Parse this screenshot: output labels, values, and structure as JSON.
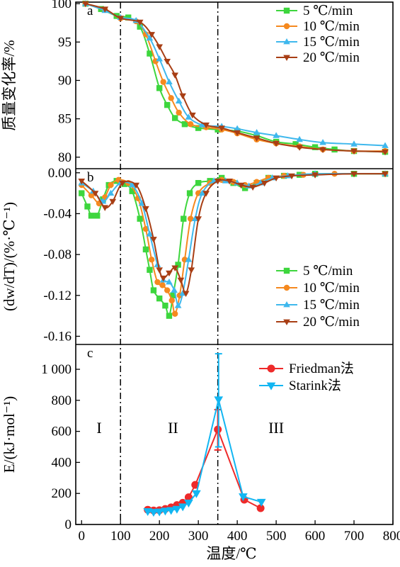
{
  "figure": {
    "x_axis": {
      "label": "温度/℃",
      "ticks": [
        0,
        100,
        200,
        300,
        400,
        500,
        600,
        700,
        800
      ],
      "range": [
        -15,
        800
      ]
    },
    "divider_lines_x": [
      100,
      350
    ]
  },
  "chart_data": [
    {
      "id": "a",
      "type": "line",
      "panel_label": "a",
      "ylabel": "质量变化率/%",
      "ylim": [
        78.5,
        100.2
      ],
      "yticks": [
        80,
        85,
        90,
        95,
        100
      ],
      "ytick_labels": [
        "80",
        "85",
        "90",
        "95",
        "100"
      ],
      "grid": false,
      "legend": "top-right",
      "series": [
        {
          "name": "5 ℃/min",
          "color": "#3dd63d",
          "marker": "square",
          "points": [
            [
              10,
              100
            ],
            [
              50,
              99.3
            ],
            [
              90,
              98.4
            ],
            [
              120,
              98.2
            ],
            [
              150,
              97
            ],
            [
              175,
              93.5
            ],
            [
              200,
              89
            ],
            [
              220,
              86.8
            ],
            [
              240,
              85.1
            ],
            [
              265,
              84.3
            ],
            [
              300,
              83.8
            ],
            [
              350,
              83.6
            ],
            [
              400,
              83.4
            ],
            [
              450,
              82.8
            ],
            [
              500,
              82
            ],
            [
              550,
              81.7
            ],
            [
              600,
              81.3
            ],
            [
              650,
              81
            ],
            [
              700,
              80.8
            ],
            [
              780,
              80.7
            ]
          ]
        },
        {
          "name": "10 ℃/min",
          "color": "#f5891f",
          "marker": "circle",
          "points": [
            [
              10,
              100
            ],
            [
              60,
              99.2
            ],
            [
              100,
              98.1
            ],
            [
              140,
              97.7
            ],
            [
              165,
              96
            ],
            [
              190,
              92.5
            ],
            [
              210,
              89.8
            ],
            [
              230,
              87.7
            ],
            [
              250,
              85.8
            ],
            [
              280,
              84.3
            ],
            [
              320,
              83.9
            ],
            [
              360,
              83.6
            ],
            [
              400,
              83.1
            ],
            [
              450,
              82.3
            ],
            [
              500,
              81.8
            ],
            [
              560,
              81.4
            ],
            [
              620,
              81
            ],
            [
              700,
              80.8
            ],
            [
              780,
              80.8
            ]
          ]
        },
        {
          "name": "15 ℃/min",
          "color": "#3fb8ed",
          "marker": "triangle-up",
          "points": [
            [
              10,
              100
            ],
            [
              60,
              99.1
            ],
            [
              100,
              98.2
            ],
            [
              140,
              97.8
            ],
            [
              175,
              95.5
            ],
            [
              200,
              92.8
            ],
            [
              225,
              89.8
            ],
            [
              250,
              87.3
            ],
            [
              275,
              85.2
            ],
            [
              310,
              84.2
            ],
            [
              360,
              84
            ],
            [
              400,
              83.7
            ],
            [
              450,
              83.2
            ],
            [
              500,
              82.8
            ],
            [
              560,
              82.3
            ],
            [
              620,
              81.9
            ],
            [
              700,
              81.7
            ],
            [
              780,
              81.5
            ]
          ]
        },
        {
          "name": "20 ℃/min",
          "color": "#a83e14",
          "marker": "triangle-down",
          "points": [
            [
              10,
              100
            ],
            [
              60,
              99.3
            ],
            [
              100,
              98.1
            ],
            [
              150,
              97.6
            ],
            [
              180,
              96
            ],
            [
              200,
              94.4
            ],
            [
              220,
              92.5
            ],
            [
              240,
              90.7
            ],
            [
              260,
              88
            ],
            [
              285,
              85.5
            ],
            [
              320,
              84.2
            ],
            [
              360,
              83.8
            ],
            [
              400,
              83.2
            ],
            [
              450,
              82.5
            ],
            [
              500,
              81.8
            ],
            [
              560,
              81.3
            ],
            [
              620,
              81
            ],
            [
              700,
              80.8
            ],
            [
              780,
              80.7
            ]
          ]
        }
      ]
    },
    {
      "id": "b",
      "type": "line",
      "panel_label": "b",
      "ylabel": "(dw/dT)/(%·℃⁻¹)",
      "ylim": [
        -0.168,
        0.004
      ],
      "yticks": [
        0,
        -0.04,
        -0.08,
        -0.12,
        -0.16
      ],
      "ytick_labels": [
        "0.00",
        "-0.04",
        "-0.08",
        "-0.12",
        "-0.16"
      ],
      "grid": false,
      "legend": "bottom-right",
      "series": [
        {
          "name": "5 ℃/min",
          "color": "#3dd63d",
          "marker": "square",
          "points": [
            [
              0,
              -0.02
            ],
            [
              15,
              -0.033
            ],
            [
              25,
              -0.042
            ],
            [
              40,
              -0.042
            ],
            [
              55,
              -0.026
            ],
            [
              70,
              -0.012
            ],
            [
              90,
              -0.008
            ],
            [
              110,
              -0.011
            ],
            [
              130,
              -0.018
            ],
            [
              150,
              -0.045
            ],
            [
              165,
              -0.075
            ],
            [
              175,
              -0.095
            ],
            [
              185,
              -0.115
            ],
            [
              200,
              -0.123
            ],
            [
              215,
              -0.13
            ],
            [
              225,
              -0.14
            ],
            [
              235,
              -0.12
            ],
            [
              248,
              -0.09
            ],
            [
              262,
              -0.045
            ],
            [
              278,
              -0.02
            ],
            [
              300,
              -0.01
            ],
            [
              330,
              -0.008
            ],
            [
              360,
              -0.005
            ],
            [
              390,
              -0.01
            ],
            [
              420,
              -0.015
            ],
            [
              450,
              -0.01
            ],
            [
              480,
              -0.005
            ],
            [
              520,
              -0.003
            ],
            [
              560,
              -0.002
            ],
            [
              600,
              -0.001
            ],
            [
              700,
              -0.001
            ],
            [
              780,
              -0.001
            ]
          ]
        },
        {
          "name": "10 ℃/min",
          "color": "#f5891f",
          "marker": "circle",
          "points": [
            [
              0,
              -0.012
            ],
            [
              25,
              -0.022
            ],
            [
              45,
              -0.03
            ],
            [
              60,
              -0.024
            ],
            [
              75,
              -0.012
            ],
            [
              95,
              -0.007
            ],
            [
              120,
              -0.01
            ],
            [
              145,
              -0.025
            ],
            [
              165,
              -0.055
            ],
            [
              180,
              -0.085
            ],
            [
              195,
              -0.107
            ],
            [
              208,
              -0.11
            ],
            [
              220,
              -0.115
            ],
            [
              232,
              -0.125
            ],
            [
              240,
              -0.138
            ],
            [
              252,
              -0.12
            ],
            [
              265,
              -0.085
            ],
            [
              280,
              -0.045
            ],
            [
              300,
              -0.02
            ],
            [
              330,
              -0.01
            ],
            [
              360,
              -0.007
            ],
            [
              390,
              -0.009
            ],
            [
              420,
              -0.012
            ],
            [
              450,
              -0.009
            ],
            [
              480,
              -0.005
            ],
            [
              520,
              -0.003
            ],
            [
              570,
              -0.002
            ],
            [
              650,
              -0.001
            ],
            [
              780,
              -0.001
            ]
          ]
        },
        {
          "name": "15 ℃/min",
          "color": "#3fb8ed",
          "marker": "triangle-up",
          "points": [
            [
              0,
              -0.01
            ],
            [
              30,
              -0.018
            ],
            [
              55,
              -0.028
            ],
            [
              75,
              -0.02
            ],
            [
              100,
              -0.01
            ],
            [
              130,
              -0.012
            ],
            [
              155,
              -0.03
            ],
            [
              175,
              -0.06
            ],
            [
              195,
              -0.09
            ],
            [
              210,
              -0.105
            ],
            [
              225,
              -0.107
            ],
            [
              238,
              -0.115
            ],
            [
              248,
              -0.13
            ],
            [
              260,
              -0.118
            ],
            [
              275,
              -0.085
            ],
            [
              292,
              -0.045
            ],
            [
              310,
              -0.02
            ],
            [
              340,
              -0.008
            ],
            [
              370,
              -0.008
            ],
            [
              400,
              -0.01
            ],
            [
              430,
              -0.013
            ],
            [
              460,
              -0.01
            ],
            [
              490,
              -0.005
            ],
            [
              530,
              -0.003
            ],
            [
              600,
              -0.001
            ],
            [
              780,
              -0.001
            ]
          ]
        },
        {
          "name": "20 ℃/min",
          "color": "#a83e14",
          "marker": "triangle-down",
          "points": [
            [
              0,
              -0.008
            ],
            [
              35,
              -0.02
            ],
            [
              60,
              -0.034
            ],
            [
              80,
              -0.028
            ],
            [
              105,
              -0.01
            ],
            [
              140,
              -0.012
            ],
            [
              165,
              -0.035
            ],
            [
              185,
              -0.065
            ],
            [
              200,
              -0.095
            ],
            [
              210,
              -0.103
            ],
            [
              225,
              -0.098
            ],
            [
              240,
              -0.093
            ],
            [
              255,
              -0.105
            ],
            [
              268,
              -0.118
            ],
            [
              282,
              -0.095
            ],
            [
              300,
              -0.045
            ],
            [
              320,
              -0.02
            ],
            [
              350,
              -0.008
            ],
            [
              380,
              -0.008
            ],
            [
              410,
              -0.012
            ],
            [
              440,
              -0.014
            ],
            [
              470,
              -0.01
            ],
            [
              500,
              -0.005
            ],
            [
              540,
              -0.003
            ],
            [
              600,
              -0.002
            ],
            [
              700,
              -0.001
            ],
            [
              780,
              -0.001
            ]
          ]
        }
      ]
    },
    {
      "id": "c",
      "type": "line",
      "panel_label": "c",
      "ylabel": "E/(kJ·mol⁻¹)",
      "ylim": [
        0,
        1160
      ],
      "yticks": [
        0,
        200,
        400,
        600,
        800,
        1000
      ],
      "ytick_labels": [
        "0",
        "200",
        "400",
        "600",
        "800",
        "1 000"
      ],
      "grid": false,
      "legend": "top-right",
      "region_labels": [
        {
          "text": "I",
          "x": 45,
          "y": 590
        },
        {
          "text": "II",
          "x": 235,
          "y": 590
        },
        {
          "text": "III",
          "x": 500,
          "y": 590
        }
      ],
      "series": [
        {
          "name": "Friedman法",
          "color": "#ee2a2a",
          "marker": "circle",
          "points": [
            [
              170,
              95
            ],
            [
              185,
              90
            ],
            [
              200,
              92
            ],
            [
              215,
              100
            ],
            [
              230,
              110
            ],
            [
              245,
              125
            ],
            [
              260,
              140
            ],
            [
              275,
              175
            ],
            [
              292,
              255
            ],
            [
              350,
              612
            ],
            [
              418,
              160
            ],
            [
              460,
              105
            ]
          ],
          "error_bars": [
            {
              "x": 350,
              "y": 612,
              "low": 480,
              "high": 740
            }
          ]
        },
        {
          "name": "Starink法",
          "color": "#12b6f2",
          "marker": "triangle-down",
          "points": [
            [
              170,
              85
            ],
            [
              185,
              80
            ],
            [
              200,
              82
            ],
            [
              215,
              88
            ],
            [
              230,
              92
            ],
            [
              245,
              100
            ],
            [
              260,
              115
            ],
            [
              275,
              140
            ],
            [
              295,
              200
            ],
            [
              352,
              805
            ],
            [
              415,
              180
            ],
            [
              462,
              145
            ]
          ],
          "error_bars": [
            {
              "x": 352,
              "y": 805,
              "low": 500,
              "high": 1100
            }
          ]
        }
      ]
    }
  ]
}
